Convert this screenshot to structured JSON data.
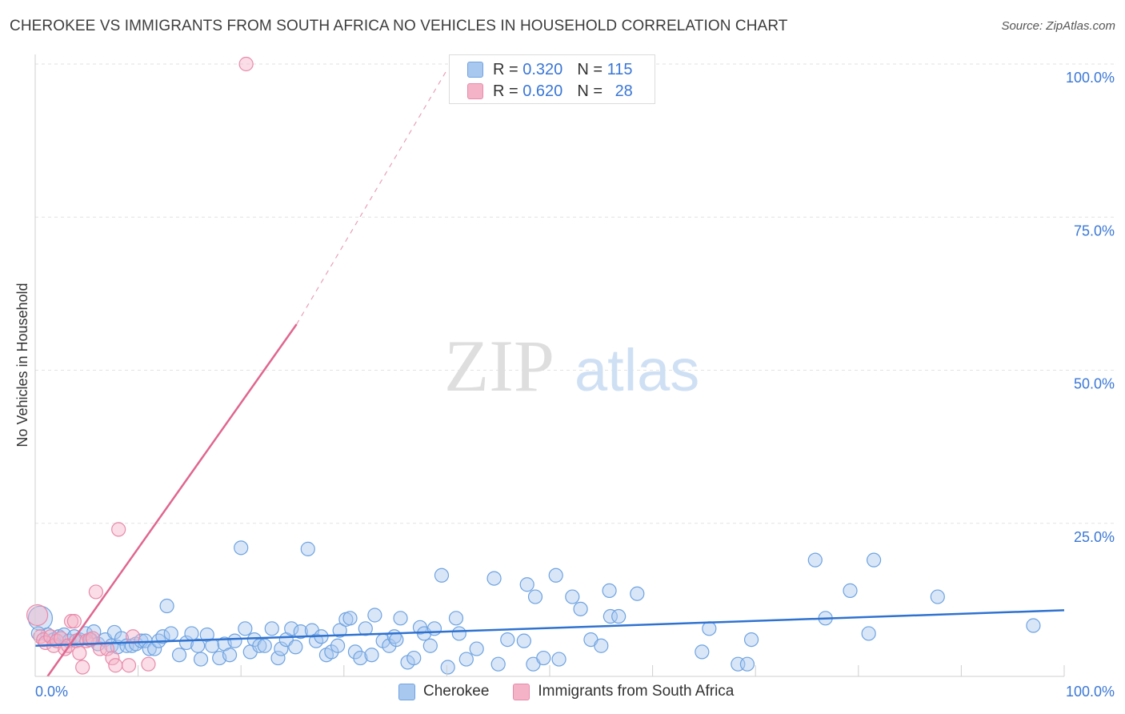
{
  "header": {
    "title": "CHEROKEE VS IMMIGRANTS FROM SOUTH AFRICA NO VEHICLES IN HOUSEHOLD CORRELATION CHART",
    "source": "Source: ZipAtlas.com"
  },
  "watermark": {
    "zip": "ZIP",
    "atlas": "atlas"
  },
  "legend": {
    "rows": [
      {
        "r_label": "R = ",
        "r_value": "0.320",
        "n_label": "N = ",
        "n_value": "115",
        "color": "#a8c8f0"
      },
      {
        "r_label": "R = ",
        "r_value": "0.620",
        "n_label": "N = ",
        "n_value": "28",
        "color": "#f5b3c8"
      }
    ]
  },
  "chart_data": {
    "type": "scatter",
    "title": "CHEROKEE VS IMMIGRANTS FROM SOUTH AFRICA NO VEHICLES IN HOUSEHOLD CORRELATION CHART",
    "ylabel": "No Vehicles in Household",
    "xlim": [
      0,
      100
    ],
    "ylim": [
      0,
      100
    ],
    "x_tick_labels": [
      "0.0%",
      "100.0%"
    ],
    "y_tick_labels": [
      "100.0%",
      "75.0%",
      "50.0%",
      "25.0%"
    ],
    "y_ticks": [
      100,
      75,
      50,
      25
    ],
    "grid": true,
    "series": [
      {
        "name": "Cherokee",
        "color": "#6fa3e0",
        "fill": "#a8c8f0",
        "trend": {
          "x": [
            0,
            100
          ],
          "y": [
            5.0,
            10.8
          ]
        },
        "points": [
          [
            0.5,
            9.5
          ],
          [
            1.2,
            6.8
          ],
          [
            1.8,
            6.0
          ],
          [
            2.3,
            6.5
          ],
          [
            2.8,
            6.8
          ],
          [
            3.3,
            5.8
          ],
          [
            3.8,
            6.5
          ],
          [
            4.3,
            6.0
          ],
          [
            4.9,
            7.0
          ],
          [
            5.4,
            6.0
          ],
          [
            5.7,
            7.3
          ],
          [
            6.1,
            5.3
          ],
          [
            6.8,
            6.0
          ],
          [
            7.4,
            5.0
          ],
          [
            7.7,
            7.2
          ],
          [
            8.0,
            4.8
          ],
          [
            8.4,
            6.2
          ],
          [
            8.9,
            5.0
          ],
          [
            9.4,
            5.0
          ],
          [
            9.8,
            5.3
          ],
          [
            10.3,
            5.8
          ],
          [
            10.7,
            5.8
          ],
          [
            11.1,
            4.5
          ],
          [
            11.6,
            4.5
          ],
          [
            12.0,
            5.8
          ],
          [
            12.4,
            6.5
          ],
          [
            12.8,
            11.5
          ],
          [
            13.2,
            7.0
          ],
          [
            14.0,
            3.5
          ],
          [
            14.7,
            5.5
          ],
          [
            15.2,
            7.0
          ],
          [
            15.8,
            5.0
          ],
          [
            16.1,
            2.8
          ],
          [
            16.7,
            6.8
          ],
          [
            17.2,
            5.0
          ],
          [
            17.9,
            3.0
          ],
          [
            18.4,
            5.3
          ],
          [
            18.9,
            3.5
          ],
          [
            19.4,
            5.8
          ],
          [
            20.0,
            21.0
          ],
          [
            20.4,
            7.8
          ],
          [
            20.9,
            4.0
          ],
          [
            21.3,
            6.0
          ],
          [
            21.8,
            5.0
          ],
          [
            22.3,
            5.0
          ],
          [
            23.0,
            7.8
          ],
          [
            23.6,
            3.0
          ],
          [
            23.9,
            4.5
          ],
          [
            24.4,
            6.0
          ],
          [
            24.9,
            7.8
          ],
          [
            25.3,
            4.8
          ],
          [
            25.8,
            7.3
          ],
          [
            26.5,
            20.8
          ],
          [
            26.9,
            7.5
          ],
          [
            27.3,
            5.8
          ],
          [
            27.8,
            6.5
          ],
          [
            28.3,
            3.5
          ],
          [
            28.8,
            4.0
          ],
          [
            29.4,
            5.0
          ],
          [
            29.6,
            7.5
          ],
          [
            30.2,
            9.3
          ],
          [
            30.6,
            9.5
          ],
          [
            31.1,
            4.0
          ],
          [
            31.6,
            3.0
          ],
          [
            32.1,
            7.8
          ],
          [
            32.7,
            3.5
          ],
          [
            33.0,
            10.0
          ],
          [
            33.8,
            5.8
          ],
          [
            34.4,
            5.0
          ],
          [
            34.9,
            6.5
          ],
          [
            35.1,
            6.0
          ],
          [
            35.5,
            9.5
          ],
          [
            36.2,
            2.3
          ],
          [
            36.8,
            3.0
          ],
          [
            37.4,
            8.0
          ],
          [
            37.8,
            7.0
          ],
          [
            38.4,
            5.0
          ],
          [
            38.8,
            7.8
          ],
          [
            39.5,
            16.5
          ],
          [
            40.1,
            1.5
          ],
          [
            40.9,
            9.5
          ],
          [
            41.2,
            7.0
          ],
          [
            41.9,
            2.8
          ],
          [
            42.9,
            4.5
          ],
          [
            44.6,
            16.0
          ],
          [
            45.0,
            2.0
          ],
          [
            45.9,
            6.0
          ],
          [
            47.5,
            5.8
          ],
          [
            47.8,
            15.0
          ],
          [
            48.4,
            2.0
          ],
          [
            48.6,
            13.0
          ],
          [
            49.4,
            3.0
          ],
          [
            50.6,
            16.5
          ],
          [
            50.9,
            2.8
          ],
          [
            52.2,
            13.0
          ],
          [
            53.0,
            11.0
          ],
          [
            54.0,
            6.0
          ],
          [
            55.0,
            5.0
          ],
          [
            55.8,
            14.0
          ],
          [
            55.9,
            9.8
          ],
          [
            56.7,
            9.8
          ],
          [
            58.5,
            13.5
          ],
          [
            64.8,
            4.0
          ],
          [
            65.5,
            7.8
          ],
          [
            68.3,
            2.0
          ],
          [
            69.2,
            2.0
          ],
          [
            69.6,
            6.0
          ],
          [
            75.8,
            19.0
          ],
          [
            76.8,
            9.5
          ],
          [
            79.2,
            14.0
          ],
          [
            81.0,
            7.0
          ],
          [
            81.5,
            19.0
          ],
          [
            87.7,
            13.0
          ],
          [
            97.0,
            8.3
          ],
          [
            0.3,
            7.0
          ]
        ]
      },
      {
        "name": "Immigrants from South Africa",
        "color": "#e88aaa",
        "fill": "#f5b3c8",
        "trend": {
          "x": [
            1.2,
            25.4
          ],
          "y": [
            0,
            57.5
          ]
        },
        "trend_dashed": {
          "x": [
            25.4,
            40
          ],
          "y": [
            57.5,
            99
          ]
        },
        "points": [
          [
            0.2,
            10.0
          ],
          [
            0.5,
            6.5
          ],
          [
            0.8,
            6.0
          ],
          [
            1.0,
            5.5
          ],
          [
            1.5,
            6.5
          ],
          [
            1.8,
            5.0
          ],
          [
            2.1,
            5.8
          ],
          [
            2.5,
            6.2
          ],
          [
            2.9,
            4.5
          ],
          [
            3.2,
            5.0
          ],
          [
            3.5,
            9.0
          ],
          [
            3.8,
            9.0
          ],
          [
            4.0,
            5.8
          ],
          [
            4.3,
            3.8
          ],
          [
            4.6,
            1.5
          ],
          [
            5.0,
            5.8
          ],
          [
            5.3,
            6.0
          ],
          [
            5.6,
            6.2
          ],
          [
            5.9,
            13.8
          ],
          [
            6.3,
            4.5
          ],
          [
            7.0,
            4.5
          ],
          [
            7.5,
            3.0
          ],
          [
            7.8,
            1.8
          ],
          [
            8.1,
            24.0
          ],
          [
            9.1,
            1.8
          ],
          [
            9.5,
            6.5
          ],
          [
            11.0,
            2.0
          ],
          [
            20.5,
            100.0
          ]
        ]
      }
    ],
    "legend_position": "bottom"
  },
  "bottom_legend": {
    "items": [
      {
        "label": "Cherokee",
        "color": "#a8c8f0",
        "border": "#6fa3e0"
      },
      {
        "label": "Immigrants from South Africa",
        "color": "#f5b3c8",
        "border": "#e88aaa"
      }
    ]
  }
}
